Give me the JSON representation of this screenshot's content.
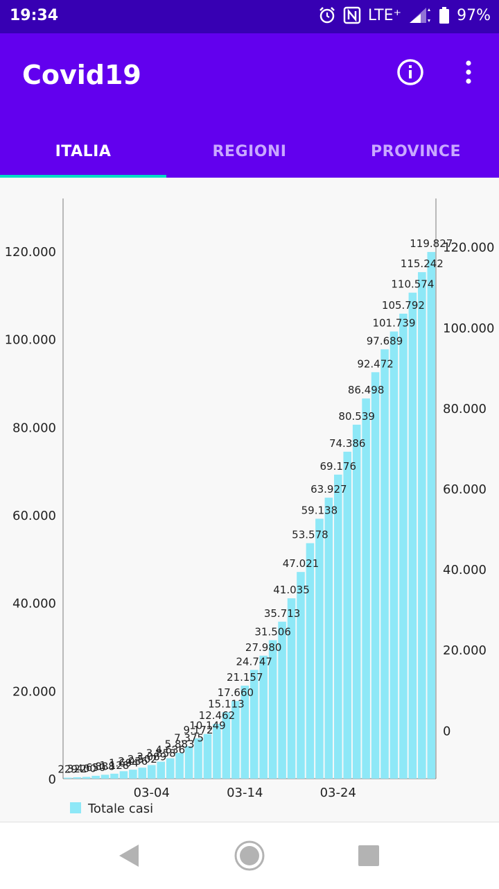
{
  "status_bar": {
    "time": "19:34",
    "network": "LTE⁺",
    "battery": "97%"
  },
  "app": {
    "title": "Covid19"
  },
  "tabs": [
    {
      "label": "ITALIA",
      "active": true
    },
    {
      "label": "REGIONI",
      "active": false
    },
    {
      "label": "PROVINCE",
      "active": false
    }
  ],
  "colors": {
    "status_bar": "#3700b3",
    "app_bar": "#6200ee",
    "tab_indicator": "#03dac5",
    "bar": "#8ee8f7"
  },
  "chart_data": {
    "type": "bar",
    "series": [
      {
        "name": "Totale casi",
        "values": [
          229,
          322,
          400,
          650,
          888,
          1128,
          1694,
          2036,
          2502,
          3089,
          3858,
          4636,
          5883,
          7375,
          9172,
          10149,
          12462,
          15113,
          17660,
          21157,
          24747,
          27980,
          31506,
          35713,
          41035,
          47021,
          53578,
          59138,
          63927,
          69176,
          74386,
          80539,
          86498,
          92472,
          97689,
          101739,
          105792,
          110574,
          115242,
          119827
        ]
      }
    ],
    "data_labels": [
      "229",
      "322",
      "400",
      "650",
      "888",
      "1.128",
      "1.694",
      "2.036",
      "2.502",
      "3.089",
      "3.858",
      "4.636",
      "5.883",
      "7.375",
      "9.172",
      "10.149",
      "12.462",
      "15.113",
      "17.660",
      "21.157",
      "24.747",
      "27.980",
      "31.506",
      "35.713",
      "41.035",
      "47.021",
      "53.578",
      "59.138",
      "63.927",
      "69.176",
      "74.386",
      "80.539",
      "86.498",
      "92.472",
      "97.689",
      "101.739",
      "105.792",
      "110.574",
      "115.242",
      "119.827"
    ],
    "x_tick_labels": [
      {
        "index": 9,
        "label": "03-04"
      },
      {
        "index": 19,
        "label": "03-14"
      },
      {
        "index": 29,
        "label": "03-24"
      }
    ],
    "left_axis": {
      "ylim": [
        0,
        132000
      ],
      "ticks": [
        0,
        20000,
        40000,
        60000,
        80000,
        100000,
        120000
      ],
      "tick_labels": [
        "0",
        "20.000",
        "40.000",
        "60.000",
        "80.000",
        "100.000",
        "120.000"
      ]
    },
    "right_axis": {
      "ylim": [
        -12000,
        132000
      ],
      "ticks": [
        0,
        20000,
        40000,
        60000,
        80000,
        100000,
        120000
      ],
      "tick_labels": [
        "0",
        "20.000",
        "40.000",
        "60.000",
        "80.000",
        "100.000",
        "120.000"
      ]
    },
    "legend": {
      "label": "Totale casi",
      "position": "bottom-left"
    },
    "grid": false
  }
}
